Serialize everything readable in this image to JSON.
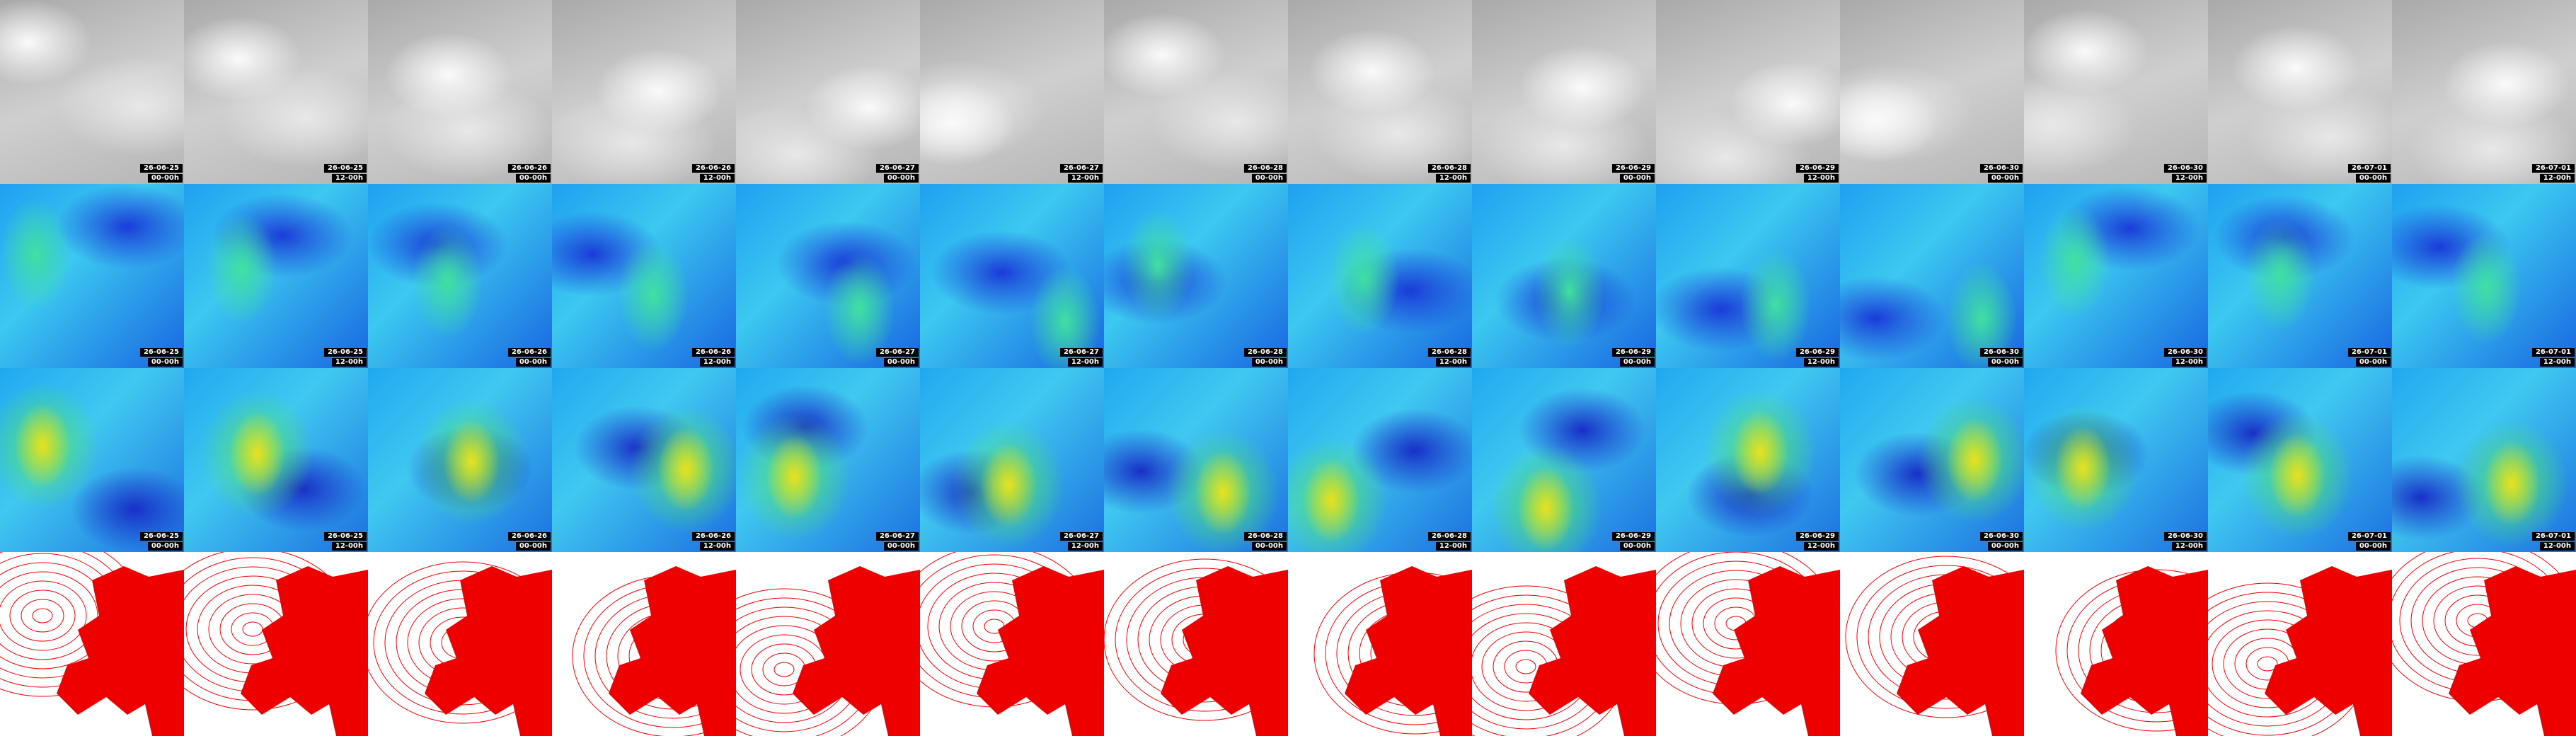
{
  "columns": [
    {
      "date": "26-06-25",
      "time": "00-00h"
    },
    {
      "date": "26-06-25",
      "time": "12-00h"
    },
    {
      "date": "26-06-26",
      "time": "00-00h"
    },
    {
      "date": "26-06-26",
      "time": "12-00h"
    },
    {
      "date": "26-06-27",
      "time": "00-00h"
    },
    {
      "date": "26-06-27",
      "time": "12-00h"
    },
    {
      "date": "26-06-28",
      "time": "00-00h"
    },
    {
      "date": "26-06-28",
      "time": "12-00h"
    },
    {
      "date": "26-06-29",
      "time": "00-00h"
    },
    {
      "date": "26-06-29",
      "time": "12-00h"
    },
    {
      "date": "26-06-30",
      "time": "00-00h"
    },
    {
      "date": "26-06-30",
      "time": "12-00h"
    },
    {
      "date": "26-07-01",
      "time": "00-00h"
    },
    {
      "date": "26-07-01",
      "time": "12-00h"
    }
  ]
}
